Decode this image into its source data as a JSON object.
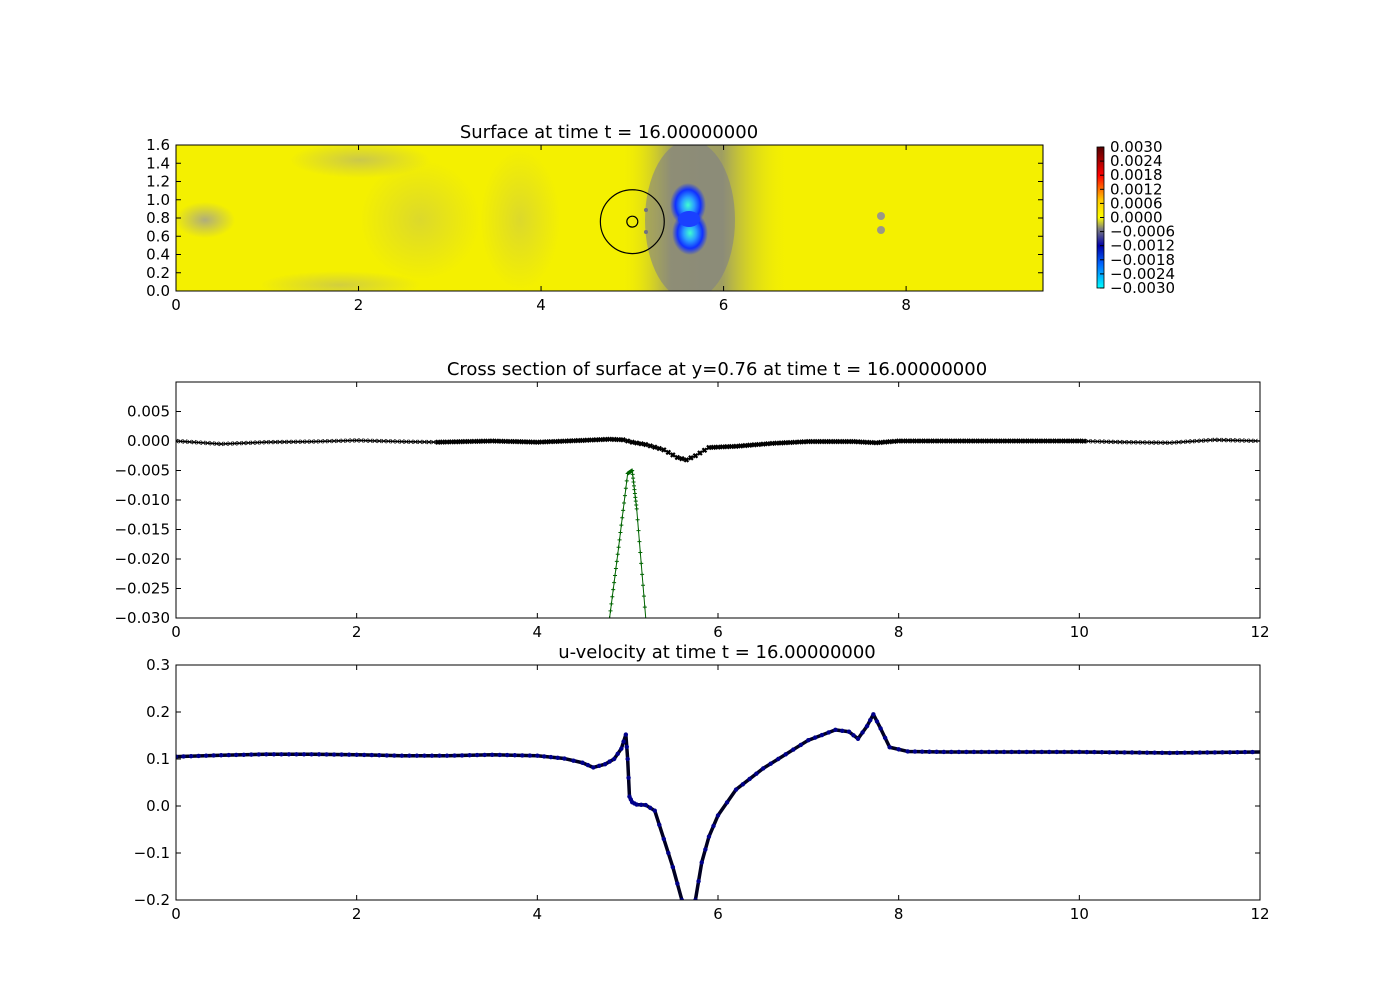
{
  "chart_data": [
    {
      "type": "heatmap",
      "title": "Surface at time t =    16.00000000",
      "xlim": [
        0,
        9.5
      ],
      "ylim": [
        0,
        1.6
      ],
      "x_ticks": [
        "0",
        "2",
        "4",
        "6",
        "8"
      ],
      "y_ticks": [
        "0.0",
        "0.2",
        "0.4",
        "0.6",
        "0.8",
        "1.0",
        "1.2",
        "1.4",
        "1.6"
      ],
      "colorbar": {
        "min": -0.003,
        "max": 0.003,
        "ticks": [
          "0.0030",
          "0.0024",
          "0.0018",
          "0.0012",
          "0.0006",
          "0.0000",
          "−0.0006",
          "−0.0012",
          "−0.0018",
          "−0.0024",
          "−0.0030"
        ],
        "colors": [
          "#00ffff",
          "#0055ff",
          "#0000aa",
          "#7f7f7f",
          "#ffff00",
          "#ffcc00",
          "#ff0000",
          "#550000"
        ]
      },
      "features": {
        "large_circle": {
          "cx": 5.0,
          "cy": 0.76,
          "r": 0.35
        },
        "small_circle": {
          "cx": 5.0,
          "cy": 0.76,
          "r": 0.06
        },
        "depression_center": [
          5.65,
          0.8
        ],
        "depression_min": -0.003,
        "background_level": 0.0
      }
    },
    {
      "type": "line",
      "title": "Cross section of surface at y=0.76 at time t =    16.00000000",
      "xlim": [
        0,
        12
      ],
      "ylim": [
        -0.03,
        0.01
      ],
      "x_ticks": [
        "0",
        "2",
        "4",
        "6",
        "8",
        "10",
        "12"
      ],
      "y_ticks": [
        "0.005",
        "0.000",
        "−0.005",
        "−0.010",
        "−0.015",
        "−0.020",
        "−0.025",
        "−0.030"
      ],
      "series": [
        {
          "color": "#000000",
          "x": [
            0,
            0.5,
            1,
            1.5,
            2,
            2.5,
            2.9,
            3.5,
            4,
            4.5,
            4.8,
            4.95,
            5.05,
            5.2,
            5.4,
            5.55,
            5.65,
            5.75,
            5.9,
            6.2,
            6.6,
            7,
            7.5,
            7.75,
            8,
            9,
            10,
            10.5,
            11,
            11.5,
            12
          ],
          "y": [
            0,
            -0.0005,
            -0.0002,
            -0.0001,
            0.0001,
            -0.0001,
            -0.0002,
            0,
            -0.0002,
            0.0001,
            0.0003,
            0.0002,
            -0.0002,
            -0.0006,
            -0.0015,
            -0.0028,
            -0.0032,
            -0.0025,
            -0.0011,
            -0.0009,
            -0.0004,
            -0.0001,
            -0.0001,
            -0.0003,
            0,
            0,
            0,
            -0.0002,
            -0.0003,
            0.0002,
            0
          ]
        },
        {
          "color": "#006400",
          "x": [
            4.8,
            4.9,
            5.0,
            5.05,
            5.1,
            5.2
          ],
          "y": [
            -0.03,
            -0.018,
            -0.0055,
            -0.005,
            -0.0115,
            -0.03
          ]
        }
      ]
    },
    {
      "type": "scatter",
      "title": "u-velocity at time t =    16.00000000",
      "xlim": [
        0,
        12
      ],
      "ylim": [
        -0.2,
        0.3
      ],
      "x_ticks": [
        "0",
        "2",
        "4",
        "6",
        "8",
        "10",
        "12"
      ],
      "y_ticks": [
        "0.3",
        "0.2",
        "0.1",
        "0.0",
        "−0.1",
        "−0.2"
      ],
      "series": [
        {
          "color": "#00008b",
          "x": [
            0,
            0.5,
            1,
            1.5,
            2,
            2.5,
            3,
            3.5,
            4,
            4.3,
            4.5,
            4.62,
            4.75,
            4.85,
            4.93,
            4.98,
            5.0,
            5.02,
            5.05,
            5.1,
            5.2,
            5.3,
            5.4,
            5.5,
            5.6,
            5.68,
            5.75,
            5.82,
            5.9,
            6.0,
            6.2,
            6.5,
            7.0,
            7.3,
            7.45,
            7.55,
            7.65,
            7.72,
            7.8,
            7.9,
            8.1,
            8.5,
            9,
            10,
            11,
            12
          ],
          "y": [
            0.105,
            0.108,
            0.11,
            0.11,
            0.109,
            0.107,
            0.107,
            0.109,
            0.107,
            0.101,
            0.092,
            0.082,
            0.089,
            0.1,
            0.122,
            0.152,
            0.1,
            0.02,
            0.008,
            0.003,
            0.002,
            -0.01,
            -0.07,
            -0.13,
            -0.2,
            -0.215,
            -0.2,
            -0.12,
            -0.065,
            -0.02,
            0.035,
            0.08,
            0.14,
            0.162,
            0.158,
            0.143,
            0.17,
            0.195,
            0.165,
            0.125,
            0.116,
            0.115,
            0.115,
            0.115,
            0.113,
            0.115
          ]
        }
      ]
    }
  ]
}
